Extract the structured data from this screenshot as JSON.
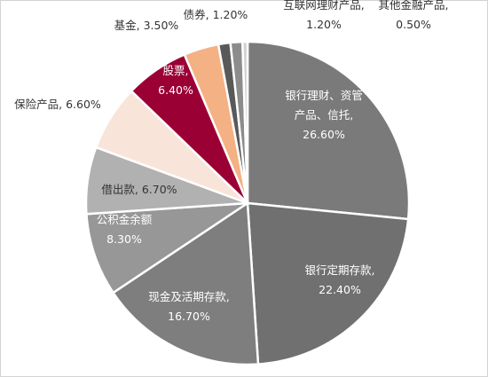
{
  "chart_data": {
    "type": "pie",
    "title": "",
    "slices": [
      {
        "label": "银行理财、资管产品、信托",
        "value": 26.6,
        "value_text": "26.60%",
        "color": "#7a7a7a",
        "label_style": "light",
        "lines": [
          "银行理财、资管",
          "产品、信托,",
          "26.60%"
        ]
      },
      {
        "label": "银行定期存款",
        "value": 22.4,
        "value_text": "22.40%",
        "color": "#707070",
        "label_style": "light",
        "lines": [
          "银行定期存款,",
          "22.40%"
        ]
      },
      {
        "label": "现金及活期存款",
        "value": 16.7,
        "value_text": "16.70%",
        "color": "#7e7e7e",
        "label_style": "light",
        "lines": [
          "现金及活期存款,",
          "16.70%"
        ]
      },
      {
        "label": "公积金余额",
        "value": 8.3,
        "value_text": "8.30%",
        "color": "#979797",
        "label_style": "light",
        "lines": [
          "公积金余额",
          "8.30%"
        ]
      },
      {
        "label": "借出款",
        "value": 6.7,
        "value_text": "6.70%",
        "color": "#b1b1b1",
        "label_style": "dark",
        "lines": [
          "借出款, 6.70%"
        ]
      },
      {
        "label": "保险产品",
        "value": 6.6,
        "value_text": "6.60%",
        "color": "#f9e4da",
        "label_style": "dark",
        "lines": [
          "保险产品, 6.60%"
        ]
      },
      {
        "label": "股票",
        "value": 6.4,
        "value_text": "6.40%",
        "color": "#9b0035",
        "label_style": "light",
        "lines": [
          "股票,",
          "6.40%"
        ]
      },
      {
        "label": "基金",
        "value": 3.5,
        "value_text": "3.50%",
        "color": "#f4b183",
        "label_style": "dark",
        "lines": [
          "基金, 3.50%"
        ]
      },
      {
        "label": "债券",
        "value": 1.2,
        "value_text": "1.20%",
        "color": "#595959",
        "label_style": "dark",
        "lines": [
          "债券, 1.20%"
        ]
      },
      {
        "label": "互联网理财产品",
        "value": 1.2,
        "value_text": "1.20%",
        "color": "#8c8c8c",
        "label_style": "dark",
        "lines": [
          "互联网理财产品,",
          "1.20%"
        ]
      },
      {
        "label": "其他金融产品",
        "value": 0.5,
        "value_text": "0.50%",
        "color": "#d0d0d0",
        "label_style": "dark",
        "lines": [
          "其他金融产品,",
          "0.50%"
        ]
      }
    ],
    "start_angle_deg": 0,
    "direction": "clockwise",
    "legend": "none"
  }
}
